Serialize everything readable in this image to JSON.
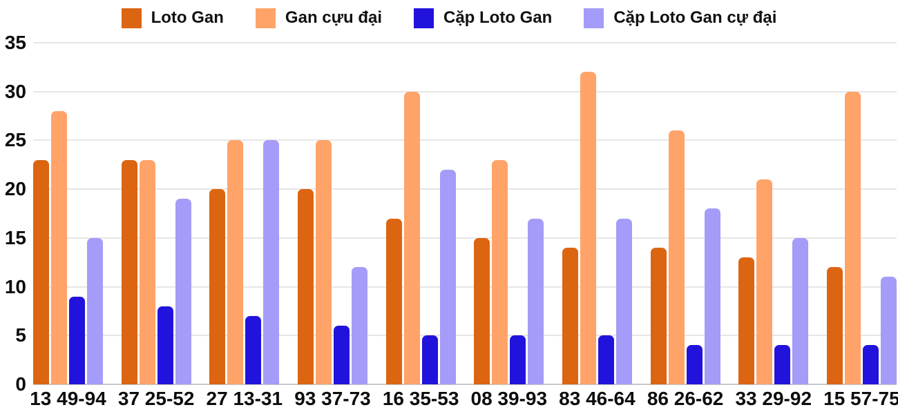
{
  "chart_data": {
    "type": "bar",
    "categories": [
      "13 49-94",
      "37 25-52",
      "27 13-31",
      "93 37-73",
      "16 35-53",
      "08 39-93",
      "83 46-64",
      "86 26-62",
      "33 29-92",
      "15 57-75"
    ],
    "series": [
      {
        "name": "Loto Gan",
        "color": "#dc6511",
        "values": [
          23,
          23,
          20,
          20,
          17,
          15,
          14,
          14,
          13,
          12
        ]
      },
      {
        "name": "Gan cựu đại",
        "color": "#ffa369",
        "values": [
          28,
          23,
          25,
          25,
          30,
          23,
          32,
          26,
          21,
          30
        ]
      },
      {
        "name": "Cặp Loto Gan",
        "color": "#2213dc",
        "values": [
          9,
          8,
          7,
          6,
          5,
          5,
          5,
          4,
          4,
          4
        ]
      },
      {
        "name": "Cặp Loto Gan cự đại",
        "color": "#a49cf8",
        "values": [
          15,
          19,
          25,
          12,
          22,
          17,
          17,
          18,
          15,
          11
        ]
      }
    ],
    "ylim": [
      0,
      35
    ],
    "ytick_step": 5,
    "grid": true,
    "legend_position": "top",
    "colors": {
      "axis_text": "#0d0d0d",
      "gridline": "#e6e6e6",
      "baseline": "#c7c7c7",
      "background": "#ffffff"
    }
  }
}
